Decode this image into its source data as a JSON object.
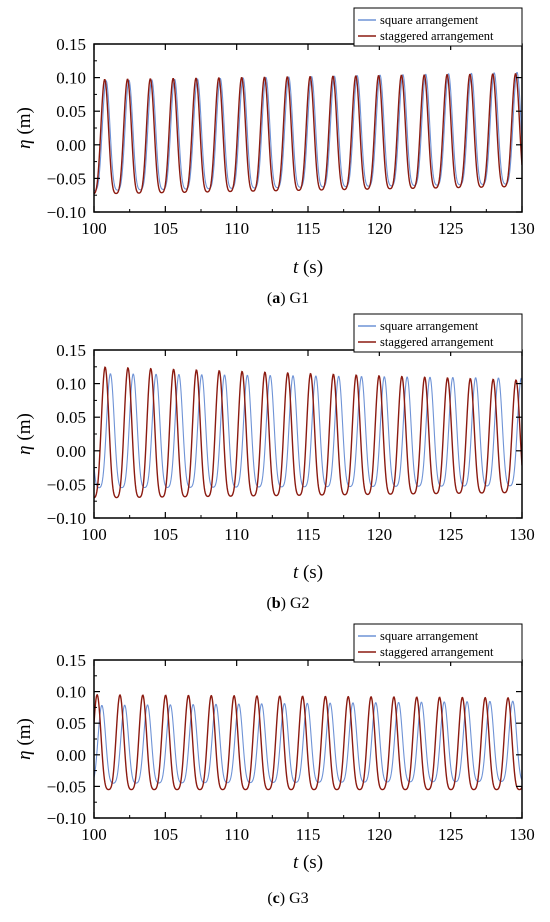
{
  "chart_data": [
    {
      "type": "line",
      "caption_letter": "a",
      "caption_rest": " G1",
      "xlabel_var": "t",
      "xlabel_unit": " (s)",
      "ylabel_var": "η",
      "ylabel_unit": " (m)",
      "xlim": [
        100,
        130
      ],
      "ylim": [
        -0.1,
        0.15
      ],
      "x_ticks": [
        "100",
        "105",
        "110",
        "115",
        "120",
        "125",
        "130"
      ],
      "y_ticks": [
        "-0.10",
        "-0.05",
        "0.00",
        "0.05",
        "0.10",
        "0.15"
      ],
      "legend_position": "top-right",
      "series": [
        {
          "name": "square arrangement",
          "color": "#6f93d6",
          "period_s": 1.6,
          "phase_s": 0.85,
          "crest_start": 0.095,
          "crest_end": 0.108,
          "trough_start": -0.068,
          "trough_end": -0.058
        },
        {
          "name": "staggered arrangement",
          "color": "#8b1a10",
          "period_s": 1.6,
          "phase_s": 0.75,
          "crest_start": 0.097,
          "crest_end": 0.106,
          "trough_start": -0.073,
          "trough_end": -0.062
        }
      ]
    },
    {
      "type": "line",
      "caption_letter": "b",
      "caption_rest": " G2",
      "xlabel_var": "t",
      "xlabel_unit": " (s)",
      "ylabel_var": "η",
      "ylabel_unit": " (m)",
      "xlim": [
        100,
        130
      ],
      "ylim": [
        -0.1,
        0.15
      ],
      "x_ticks": [
        "100",
        "105",
        "110",
        "115",
        "120",
        "125",
        "130"
      ],
      "y_ticks": [
        "-0.10",
        "-0.05",
        "0.00",
        "0.05",
        "0.10",
        "0.15"
      ],
      "legend_position": "top-right",
      "series": [
        {
          "name": "square arrangement",
          "color": "#6f93d6",
          "period_s": 1.6,
          "phase_s": 1.15,
          "crest_start": 0.115,
          "crest_end": 0.108,
          "trough_start": -0.055,
          "trough_end": -0.052
        },
        {
          "name": "staggered arrangement",
          "color": "#8b1a10",
          "period_s": 1.6,
          "phase_s": 0.78,
          "crest_start": 0.125,
          "crest_end": 0.105,
          "trough_start": -0.07,
          "trough_end": -0.062
        }
      ]
    },
    {
      "type": "line",
      "caption_letter": "c",
      "caption_rest": " G3",
      "xlabel_var": "t",
      "xlabel_unit": " (s)",
      "ylabel_var": "η",
      "ylabel_unit": " (m)",
      "xlim": [
        100,
        130
      ],
      "ylim": [
        -0.1,
        0.15
      ],
      "x_ticks": [
        "100",
        "105",
        "110",
        "115",
        "120",
        "125",
        "130"
      ],
      "y_ticks": [
        "-0.10",
        "-0.05",
        "0.00",
        "0.05",
        "0.10",
        "0.15"
      ],
      "legend_position": "top-right",
      "series": [
        {
          "name": "square arrangement",
          "color": "#6f93d6",
          "period_s": 1.6,
          "phase_s": 0.55,
          "crest_start": 0.078,
          "crest_end": 0.085,
          "trough_start": -0.045,
          "trough_end": -0.042
        },
        {
          "name": "staggered arrangement",
          "color": "#8b1a10",
          "period_s": 1.6,
          "phase_s": 0.22,
          "crest_start": 0.095,
          "crest_end": 0.09,
          "trough_start": -0.055,
          "trough_end": -0.055
        }
      ]
    }
  ]
}
